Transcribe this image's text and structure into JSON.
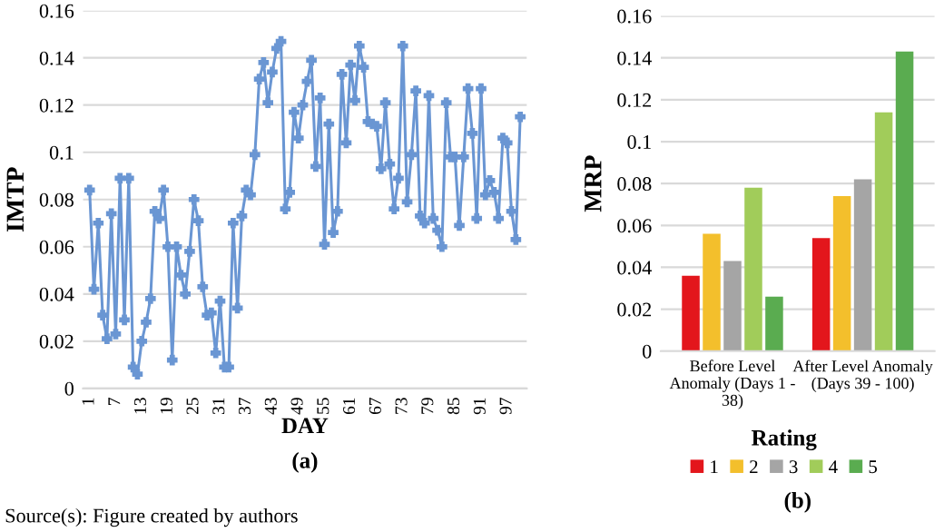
{
  "chart_data": [
    {
      "type": "line",
      "xlabel": "DAY",
      "ylabel": "IMTP",
      "categories": [
        "1",
        null,
        null,
        null,
        null,
        null,
        "7",
        null,
        null,
        null,
        null,
        null,
        "13",
        null,
        null,
        null,
        null,
        null,
        "19",
        null,
        null,
        null,
        null,
        null,
        "25",
        null,
        null,
        null,
        null,
        null,
        "31",
        null,
        null,
        null,
        null,
        null,
        "37",
        null,
        null,
        null,
        null,
        null,
        "43",
        null,
        null,
        null,
        null,
        null,
        "49",
        null,
        null,
        null,
        null,
        null,
        "55",
        null,
        null,
        null,
        null,
        null,
        "61",
        null,
        null,
        null,
        null,
        null,
        "67",
        null,
        null,
        null,
        null,
        null,
        "73",
        null,
        null,
        null,
        null,
        null,
        "79",
        null,
        null,
        null,
        null,
        null,
        "85",
        null,
        null,
        null,
        null,
        null,
        "91",
        null,
        null,
        null,
        null,
        null,
        "97",
        null,
        null,
        null
      ],
      "series": [
        {
          "color": "#6a96d3",
          "values": [
            0.084,
            0.042,
            0.07,
            0.031,
            0.021,
            0.074,
            0.023,
            0.089,
            0.029,
            0.089,
            0.009,
            0.006,
            0.02,
            0.028,
            0.038,
            0.075,
            0.072,
            0.084,
            0.06,
            0.012,
            0.06,
            0.048,
            0.04,
            0.058,
            0.08,
            0.071,
            0.043,
            0.031,
            0.032,
            0.015,
            0.037,
            0.009,
            0.009,
            0.07,
            0.034,
            0.073,
            0.084,
            0.082,
            0.099,
            0.131,
            0.138,
            0.121,
            0.134,
            0.144,
            0.147,
            0.076,
            0.083,
            0.117,
            0.106,
            0.12,
            0.13,
            0.139,
            0.094,
            0.123,
            0.061,
            0.112,
            0.066,
            0.075,
            0.133,
            0.104,
            0.137,
            0.122,
            0.145,
            0.136,
            0.113,
            0.112,
            0.111,
            0.093,
            0.121,
            0.095,
            0.076,
            0.089,
            0.145,
            0.079,
            0.099,
            0.126,
            0.073,
            0.07,
            0.124,
            0.072,
            0.067,
            0.06,
            0.121,
            0.098,
            0.098,
            0.069,
            0.098,
            0.127,
            0.108,
            0.072,
            0.127,
            0.082,
            0.088,
            0.083,
            0.072,
            0.106,
            0.104,
            0.075,
            0.063,
            0.115
          ]
        }
      ],
      "ylim": [
        0,
        0.16
      ],
      "yticks": [
        0,
        0.02,
        0.04,
        0.06,
        0.08,
        0.1,
        0.12,
        0.14,
        0.16
      ],
      "grid": "y",
      "marker": "cross",
      "line_style": "solid",
      "annotations": [
        "(a)",
        "Source(s): Figure created by authors"
      ]
    },
    {
      "type": "bar",
      "ylabel": "MRP",
      "legend_title": "Rating",
      "categories": [
        "Before Level Anomaly (Days 1 - 38)",
        "After Level Anomaly (Days 39 - 100)"
      ],
      "series": [
        {
          "name": "1",
          "color": "#e3161c",
          "values": [
            0.036,
            0.054
          ]
        },
        {
          "name": "2",
          "color": "#f3bf2c",
          "values": [
            0.056,
            0.074
          ]
        },
        {
          "name": "3",
          "color": "#a5a5a5",
          "values": [
            0.043,
            0.082
          ]
        },
        {
          "name": "4",
          "color": "#a1cc5a",
          "values": [
            0.078,
            0.114
          ]
        },
        {
          "name": "5",
          "color": "#5aac50",
          "values": [
            0.026,
            0.143
          ]
        }
      ],
      "ylim": [
        0,
        0.16
      ],
      "yticks": [
        0,
        0.02,
        0.04,
        0.06,
        0.08,
        0.1,
        0.12,
        0.14,
        0.16
      ],
      "grid": "y",
      "legend": "bottom",
      "annotations": [
        "(b)"
      ]
    }
  ]
}
